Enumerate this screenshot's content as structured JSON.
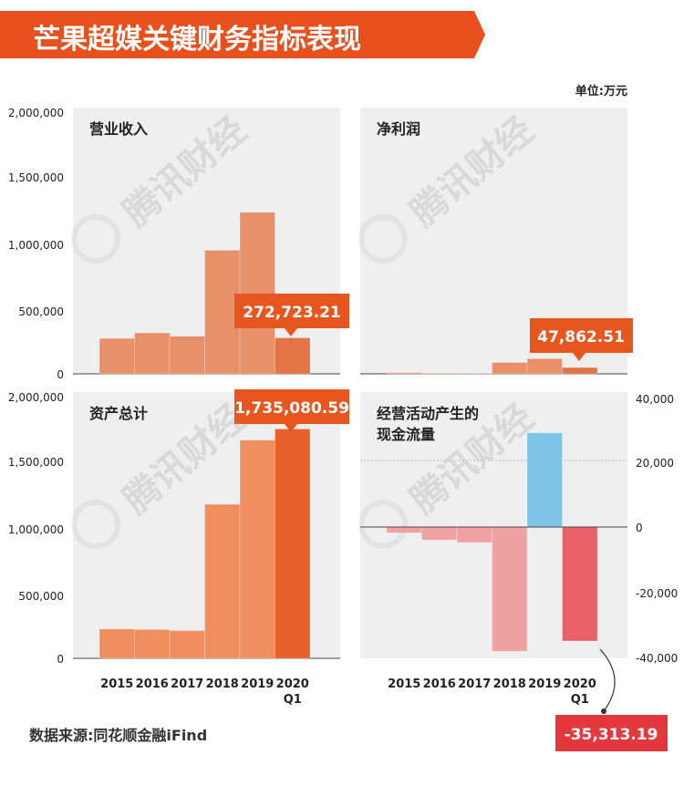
{
  "header": {
    "title": "芒果超媒关键财务指标表现",
    "unit": "单位:万元"
  },
  "footer": {
    "source": "数据来源:同花顺金融iFind"
  },
  "watermark": {
    "text": "腾讯财经"
  },
  "colors": {
    "title_bg": "#e8501e",
    "bar_orange": "#e8906a",
    "bar_orange_last": "#e37446",
    "bar_asset": "#ef8e5e",
    "bar_asset_last": "#e8612a",
    "callout": "#e8561f",
    "cash_blue": "#7ec4e6",
    "cash_neg": "#f0a2a2",
    "cash_neg_last": "#e86068",
    "panel_bg": "#efefef"
  },
  "chart_data": [
    {
      "type": "bar",
      "title": "营业收入",
      "categories": [
        "2015",
        "2016",
        "2017",
        "2018",
        "2019",
        "2020 Q1"
      ],
      "values": [
        268000,
        310000,
        285000,
        935000,
        1222000,
        272723.21
      ],
      "ylim": [
        0,
        2000000
      ],
      "yticks": [
        "2,000,000",
        "1,500,000",
        "1,000,000",
        "500,000",
        "0"
      ],
      "callout": "272,723.21"
    },
    {
      "type": "bar",
      "title": "净利润",
      "categories": [
        "2015",
        "2016",
        "2017",
        "2018",
        "2019",
        "2020 Q1"
      ],
      "values": [
        9000,
        5000,
        3000,
        86000,
        115000,
        47862.51
      ],
      "ylim": [
        0,
        2000000
      ],
      "callout": "47,862.51"
    },
    {
      "type": "bar",
      "title": "资产总计",
      "categories": [
        "2015",
        "2016",
        "2017",
        "2018",
        "2019",
        "2020 Q1"
      ],
      "values": [
        222000,
        218000,
        210000,
        1165000,
        1650000,
        1735080.59
      ],
      "ylim": [
        0,
        2000000
      ],
      "yticks": [
        "2,000,000",
        "1,500,000",
        "1,000,000",
        "500,000",
        "0"
      ],
      "xticks": [
        "2015",
        "2016",
        "2017",
        "2018",
        "2019",
        "2020"
      ],
      "xtick_sub": "Q1",
      "callout": "1,735,080.59"
    },
    {
      "type": "bar",
      "title": "经营活动产生的现金流量",
      "title_lines": [
        "经营活动产生的",
        "现金流量"
      ],
      "categories": [
        "2015",
        "2016",
        "2017",
        "2018",
        "2019",
        "2020 Q1"
      ],
      "values": [
        -1800,
        -4000,
        -4800,
        -38500,
        29200,
        -35313.19
      ],
      "ylim": [
        -40000,
        40000
      ],
      "yticks": [
        "40,000",
        "20,000",
        "0",
        "-20,000",
        "-40,000"
      ],
      "xticks": [
        "2015",
        "2016",
        "2017",
        "2018",
        "2019",
        "2020"
      ],
      "xtick_sub": "Q1",
      "callout": "-35,313.19"
    }
  ]
}
